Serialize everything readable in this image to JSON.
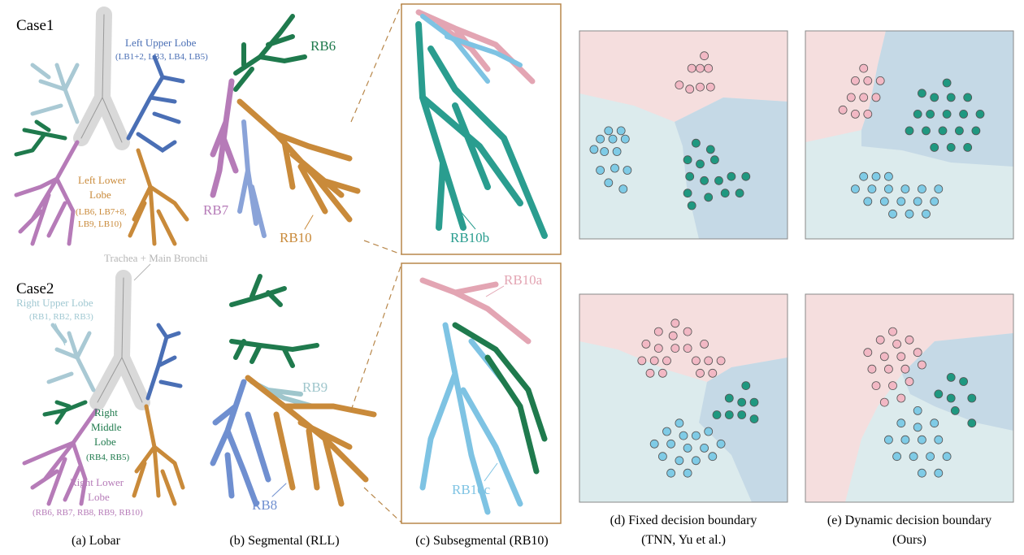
{
  "case_labels": {
    "case1": "Case1",
    "case2": "Case2"
  },
  "lobar_labels": {
    "left_upper": {
      "title": "Left Upper Lobe",
      "sub": "(LB1+2, LB3, LB4, LB5)"
    },
    "left_lower": {
      "title1": "Left Lower",
      "title2": "Lobe",
      "sub1": "(LB6, LB7+8,",
      "sub2": "LB9, LB10)"
    },
    "trachea": "Trachea + Main Bronchi",
    "right_upper": {
      "title": "Right Upper Lobe",
      "sub": "(RB1, RB2, RB3)"
    },
    "right_middle": {
      "title1": "Right",
      "title2": "Middle",
      "title3": "Lobe",
      "sub": "(RB4, RB5)"
    },
    "right_lower": {
      "title1": "Right Lower",
      "title2": "Lobe",
      "sub": "(RB6, RB7, RB8, RB9, RB10)"
    }
  },
  "segmental_labels": {
    "rb6": "RB6",
    "rb7": "RB7",
    "rb10": "RB10",
    "rb9": "RB9",
    "rb8": "RB8"
  },
  "subsegmental_labels": {
    "rb10b": "RB10b",
    "rb10a": "RB10a",
    "rb10c": "RB10c"
  },
  "captions": {
    "a": "(a) Lobar",
    "b": "(b) Segmental (RLL)",
    "c": "(c) Subsegmental (RB10)",
    "d1": "(d) Fixed decision boundary",
    "d2": "(TNN, Yu et al.)",
    "e1": "(e) Dynamic decision boundary",
    "e2": "(Ours)"
  },
  "colors": {
    "trachea": "#d9d9d9",
    "left_upper": "#4a6fb5",
    "left_lower": "#c98a3a",
    "right_upper": "#a9c9d4",
    "right_middle": "#1f7a4d",
    "right_lower": "#b67bb8",
    "rb6": "#1f7a4d",
    "rb7": "#b67bb8",
    "rb8": "#6f8fd0",
    "rb9": "#9fc6cc",
    "rb10": "#c98a3a",
    "rb10a": "#e3a5b3",
    "rb10b": "#2a9d8f",
    "rb10c": "#7ec3e3",
    "region_pink": "#f5dede",
    "region_lightblue": "#dcebed",
    "region_blue": "#c5d9e6",
    "point_pink": "#f2b8c4",
    "point_cyan": "#7fcbe6",
    "point_teal": "#1f9880",
    "frame_orange": "#b8874a"
  },
  "chart_data": [
    {
      "type": "scatter",
      "panel": "d",
      "regions": [
        "pink",
        "lightblue",
        "blue"
      ],
      "xlim": [
        0,
        1
      ],
      "ylim": [
        0,
        1
      ],
      "series": [
        {
          "class": "pink",
          "points": [
            [
              0.6,
              0.88
            ],
            [
              0.54,
              0.82
            ],
            [
              0.58,
              0.82
            ],
            [
              0.62,
              0.82
            ],
            [
              0.48,
              0.74
            ],
            [
              0.53,
              0.72
            ],
            [
              0.58,
              0.73
            ],
            [
              0.63,
              0.73
            ]
          ]
        },
        {
          "class": "cyan",
          "points": [
            [
              0.14,
              0.52
            ],
            [
              0.2,
              0.52
            ],
            [
              0.1,
              0.48
            ],
            [
              0.16,
              0.48
            ],
            [
              0.22,
              0.48
            ],
            [
              0.07,
              0.43
            ],
            [
              0.12,
              0.42
            ],
            [
              0.18,
              0.42
            ],
            [
              0.1,
              0.33
            ],
            [
              0.17,
              0.34
            ],
            [
              0.23,
              0.33
            ],
            [
              0.14,
              0.27
            ],
            [
              0.21,
              0.24
            ]
          ]
        },
        {
          "class": "teal",
          "points": [
            [
              0.56,
              0.46
            ],
            [
              0.63,
              0.43
            ],
            [
              0.52,
              0.38
            ],
            [
              0.58,
              0.36
            ],
            [
              0.65,
              0.38
            ],
            [
              0.53,
              0.3
            ],
            [
              0.6,
              0.28
            ],
            [
              0.67,
              0.28
            ],
            [
              0.73,
              0.3
            ],
            [
              0.8,
              0.3
            ],
            [
              0.52,
              0.22
            ],
            [
              0.62,
              0.2
            ],
            [
              0.7,
              0.22
            ],
            [
              0.77,
              0.22
            ],
            [
              0.54,
              0.16
            ]
          ]
        }
      ]
    },
    {
      "type": "scatter",
      "panel": "e_top",
      "regions": [
        "pink",
        "blue",
        "lightblue"
      ],
      "xlim": [
        0,
        1
      ],
      "ylim": [
        0,
        1
      ],
      "series": [
        {
          "class": "pink",
          "points": [
            [
              0.28,
              0.82
            ],
            [
              0.24,
              0.76
            ],
            [
              0.3,
              0.76
            ],
            [
              0.36,
              0.76
            ],
            [
              0.22,
              0.68
            ],
            [
              0.28,
              0.68
            ],
            [
              0.34,
              0.68
            ],
            [
              0.18,
              0.62
            ],
            [
              0.24,
              0.6
            ],
            [
              0.3,
              0.6
            ]
          ]
        },
        {
          "class": "teal",
          "points": [
            [
              0.68,
              0.75
            ],
            [
              0.56,
              0.7
            ],
            [
              0.62,
              0.68
            ],
            [
              0.7,
              0.68
            ],
            [
              0.78,
              0.68
            ],
            [
              0.54,
              0.6
            ],
            [
              0.6,
              0.6
            ],
            [
              0.68,
              0.6
            ],
            [
              0.76,
              0.6
            ],
            [
              0.84,
              0.6
            ],
            [
              0.5,
              0.52
            ],
            [
              0.58,
              0.52
            ],
            [
              0.66,
              0.52
            ],
            [
              0.74,
              0.52
            ],
            [
              0.82,
              0.52
            ],
            [
              0.62,
              0.44
            ],
            [
              0.7,
              0.44
            ],
            [
              0.78,
              0.44
            ]
          ]
        },
        {
          "class": "cyan",
          "points": [
            [
              0.28,
              0.3
            ],
            [
              0.34,
              0.3
            ],
            [
              0.4,
              0.3
            ],
            [
              0.24,
              0.24
            ],
            [
              0.32,
              0.24
            ],
            [
              0.4,
              0.24
            ],
            [
              0.48,
              0.24
            ],
            [
              0.56,
              0.24
            ],
            [
              0.64,
              0.24
            ],
            [
              0.3,
              0.18
            ],
            [
              0.38,
              0.18
            ],
            [
              0.46,
              0.18
            ],
            [
              0.54,
              0.18
            ],
            [
              0.62,
              0.18
            ],
            [
              0.42,
              0.12
            ],
            [
              0.5,
              0.12
            ],
            [
              0.58,
              0.12
            ]
          ]
        }
      ]
    },
    {
      "type": "scatter",
      "panel": "d_bottom",
      "regions": [
        "pink",
        "lightblue",
        "blue"
      ],
      "xlim": [
        0,
        1
      ],
      "ylim": [
        0,
        1
      ],
      "series": [
        {
          "class": "pink",
          "points": [
            [
              0.46,
              0.86
            ],
            [
              0.38,
              0.82
            ],
            [
              0.45,
              0.8
            ],
            [
              0.52,
              0.82
            ],
            [
              0.32,
              0.76
            ],
            [
              0.38,
              0.74
            ],
            [
              0.46,
              0.74
            ],
            [
              0.52,
              0.74
            ],
            [
              0.6,
              0.76
            ],
            [
              0.3,
              0.68
            ],
            [
              0.36,
              0.68
            ],
            [
              0.42,
              0.68
            ],
            [
              0.56,
              0.68
            ],
            [
              0.62,
              0.68
            ],
            [
              0.68,
              0.68
            ],
            [
              0.34,
              0.62
            ],
            [
              0.4,
              0.62
            ],
            [
              0.58,
              0.62
            ],
            [
              0.64,
              0.62
            ]
          ]
        },
        {
          "class": "teal",
          "points": [
            [
              0.8,
              0.56
            ],
            [
              0.72,
              0.5
            ],
            [
              0.78,
              0.48
            ],
            [
              0.84,
              0.48
            ],
            [
              0.66,
              0.42
            ],
            [
              0.72,
              0.42
            ],
            [
              0.78,
              0.42
            ],
            [
              0.84,
              0.4
            ]
          ]
        },
        {
          "class": "cyan",
          "points": [
            [
              0.48,
              0.38
            ],
            [
              0.42,
              0.34
            ],
            [
              0.5,
              0.32
            ],
            [
              0.56,
              0.32
            ],
            [
              0.62,
              0.34
            ],
            [
              0.36,
              0.28
            ],
            [
              0.44,
              0.28
            ],
            [
              0.52,
              0.26
            ],
            [
              0.6,
              0.26
            ],
            [
              0.68,
              0.28
            ],
            [
              0.4,
              0.22
            ],
            [
              0.48,
              0.2
            ],
            [
              0.56,
              0.2
            ],
            [
              0.64,
              0.22
            ],
            [
              0.44,
              0.14
            ],
            [
              0.52,
              0.14
            ]
          ]
        }
      ]
    },
    {
      "type": "scatter",
      "panel": "e_bottom",
      "regions": [
        "pink",
        "blue",
        "lightblue"
      ],
      "xlim": [
        0,
        1
      ],
      "ylim": [
        0,
        1
      ],
      "series": [
        {
          "class": "pink",
          "points": [
            [
              0.42,
              0.82
            ],
            [
              0.36,
              0.78
            ],
            [
              0.44,
              0.76
            ],
            [
              0.5,
              0.78
            ],
            [
              0.3,
              0.72
            ],
            [
              0.38,
              0.7
            ],
            [
              0.46,
              0.7
            ],
            [
              0.54,
              0.72
            ],
            [
              0.32,
              0.64
            ],
            [
              0.4,
              0.64
            ],
            [
              0.48,
              0.64
            ],
            [
              0.56,
              0.66
            ],
            [
              0.34,
              0.56
            ],
            [
              0.42,
              0.56
            ],
            [
              0.5,
              0.58
            ],
            [
              0.38,
              0.48
            ],
            [
              0.46,
              0.5
            ]
          ]
        },
        {
          "class": "teal",
          "points": [
            [
              0.7,
              0.6
            ],
            [
              0.76,
              0.58
            ],
            [
              0.64,
              0.52
            ],
            [
              0.7,
              0.5
            ],
            [
              0.8,
              0.5
            ],
            [
              0.72,
              0.44
            ],
            [
              0.8,
              0.38
            ]
          ]
        },
        {
          "class": "cyan",
          "points": [
            [
              0.54,
              0.44
            ],
            [
              0.46,
              0.38
            ],
            [
              0.54,
              0.36
            ],
            [
              0.62,
              0.38
            ],
            [
              0.4,
              0.3
            ],
            [
              0.48,
              0.3
            ],
            [
              0.56,
              0.3
            ],
            [
              0.64,
              0.3
            ],
            [
              0.44,
              0.22
            ],
            [
              0.52,
              0.22
            ],
            [
              0.6,
              0.22
            ],
            [
              0.68,
              0.22
            ],
            [
              0.56,
              0.14
            ],
            [
              0.64,
              0.14
            ]
          ]
        }
      ]
    }
  ]
}
